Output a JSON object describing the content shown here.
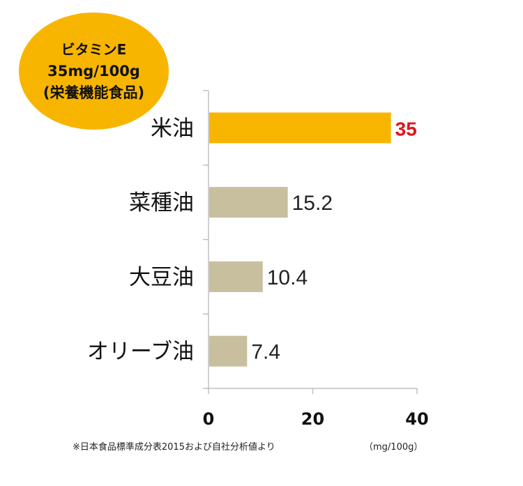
{
  "badge": {
    "line1": "ビタミンE",
    "line2": "35mg/100g",
    "line3": "(栄養機能食品)"
  },
  "colors": {
    "highlight_bar": "#f8b500",
    "other_bar": "#c7bf9e",
    "highlight_label": "#e0141e",
    "axis": "#bfbfbf"
  },
  "chart_data": {
    "type": "bar",
    "orientation": "horizontal",
    "categories": [
      "米油",
      "菜種油",
      "大豆油",
      "オリーブ油"
    ],
    "values": [
      35,
      15.2,
      10.4,
      7.4
    ],
    "value_labels": [
      "35",
      "15.2",
      "10.4",
      "7.4"
    ],
    "highlight_index": 0,
    "xlim": [
      0,
      40
    ],
    "x_ticks": [
      0,
      20,
      40
    ],
    "x_tick_labels": [
      "0",
      "20",
      "40"
    ],
    "unit_label": "（mg/100g）",
    "grid": false
  },
  "footnote": "※日本食品標準成分表2015および自社分析値より"
}
